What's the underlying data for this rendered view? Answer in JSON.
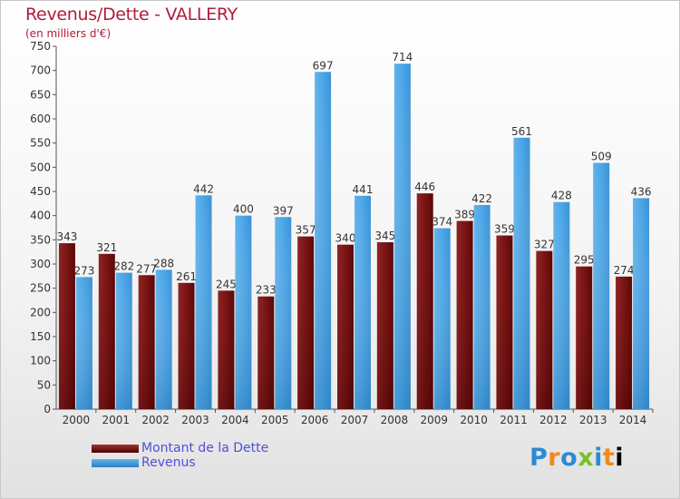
{
  "chart_data": {
    "type": "bar",
    "title": "Revenus/Dette - VALLERY",
    "subtitle": "(en milliers d'€)",
    "categories": [
      "2000",
      "2001",
      "2002",
      "2003",
      "2004",
      "2005",
      "2006",
      "2007",
      "2008",
      "2009",
      "2010",
      "2011",
      "2012",
      "2013",
      "2014"
    ],
    "series": [
      {
        "name": "Montant de la Dette",
        "color": "#7a1414",
        "values": [
          343,
          321,
          277,
          261,
          245,
          233,
          357,
          340,
          345,
          446,
          389,
          359,
          327,
          295,
          274
        ]
      },
      {
        "name": "Revenus",
        "color": "#3f9ee0",
        "values": [
          273,
          282,
          288,
          442,
          400,
          397,
          697,
          441,
          714,
          374,
          422,
          561,
          428,
          509,
          436
        ]
      }
    ],
    "ylim": [
      0,
      750
    ],
    "yticks": [
      0,
      50,
      100,
      150,
      200,
      250,
      300,
      350,
      400,
      450,
      500,
      550,
      600,
      650,
      700,
      750
    ],
    "grid": false,
    "legend": "bottom-left"
  },
  "logo": {
    "letters": [
      "P",
      "r",
      "o",
      "x",
      "i",
      "t",
      "i"
    ]
  }
}
